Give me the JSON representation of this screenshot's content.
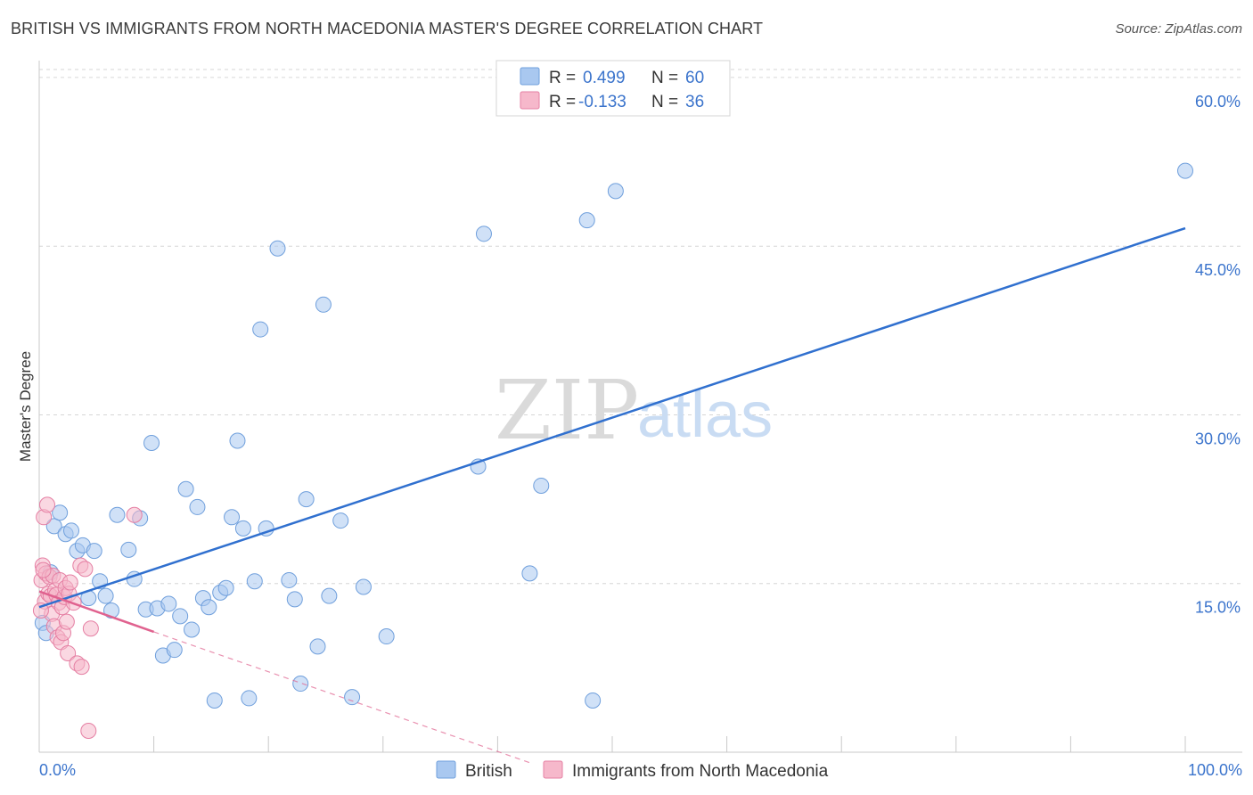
{
  "title": "BRITISH VS IMMIGRANTS FROM NORTH MACEDONIA MASTER'S DEGREE CORRELATION CHART",
  "source": "Source: ZipAtlas.com",
  "watermark": {
    "zip": "ZIP",
    "atlas": "atlas"
  },
  "chart_data": {
    "type": "scatter",
    "title": "BRITISH VS IMMIGRANTS FROM NORTH MACEDONIA MASTER'S DEGREE CORRELATION CHART",
    "xlabel": "",
    "ylabel": "Master's Degree",
    "xlim": [
      0,
      100
    ],
    "ylim": [
      0,
      61.5
    ],
    "x_tick_labels": [
      "0.0%",
      "100.0%"
    ],
    "y_ticks": [
      15,
      30,
      45,
      60
    ],
    "y_tick_labels": [
      "15.0%",
      "30.0%",
      "45.0%",
      "60.0%"
    ],
    "legend_stats": [
      {
        "r_label": "R =",
        "r_value": "0.499",
        "n_label": "N =",
        "n_value": "60"
      },
      {
        "r_label": "R =",
        "r_value": "-0.133",
        "n_label": "N =",
        "n_value": "36"
      }
    ],
    "series": [
      {
        "name": "British",
        "color": "#a9c8f0",
        "edge": "#6f9fdc",
        "trend_color": "#3070cf",
        "trend": {
          "x0": 0,
          "y0": 12.9,
          "x1": 100,
          "y1": 46.6
        },
        "points": [
          [
            0.3,
            11.5
          ],
          [
            0.6,
            10.6
          ],
          [
            1.0,
            16.0
          ],
          [
            1.3,
            20.1
          ],
          [
            1.8,
            21.3
          ],
          [
            2.3,
            19.4
          ],
          [
            2.8,
            19.7
          ],
          [
            3.3,
            17.9
          ],
          [
            3.8,
            18.4
          ],
          [
            4.3,
            13.7
          ],
          [
            4.8,
            17.9
          ],
          [
            5.3,
            15.2
          ],
          [
            5.8,
            13.9
          ],
          [
            6.3,
            12.6
          ],
          [
            6.8,
            21.1
          ],
          [
            7.8,
            18.0
          ],
          [
            8.3,
            15.4
          ],
          [
            8.8,
            20.8
          ],
          [
            9.3,
            12.7
          ],
          [
            9.8,
            27.5
          ],
          [
            10.3,
            12.8
          ],
          [
            10.8,
            8.6
          ],
          [
            11.3,
            13.2
          ],
          [
            11.8,
            9.1
          ],
          [
            12.3,
            12.1
          ],
          [
            12.8,
            23.4
          ],
          [
            13.3,
            10.9
          ],
          [
            13.8,
            21.8
          ],
          [
            14.3,
            13.7
          ],
          [
            14.8,
            12.9
          ],
          [
            15.3,
            4.6
          ],
          [
            15.8,
            14.2
          ],
          [
            16.3,
            14.6
          ],
          [
            16.8,
            20.9
          ],
          [
            17.3,
            27.7
          ],
          [
            17.8,
            19.9
          ],
          [
            18.3,
            4.8
          ],
          [
            18.8,
            15.2
          ],
          [
            19.3,
            37.6
          ],
          [
            19.8,
            19.9
          ],
          [
            20.8,
            44.8
          ],
          [
            21.8,
            15.3
          ],
          [
            22.3,
            13.6
          ],
          [
            22.8,
            6.1
          ],
          [
            23.3,
            22.5
          ],
          [
            24.3,
            9.4
          ],
          [
            24.8,
            39.8
          ],
          [
            25.3,
            13.9
          ],
          [
            26.3,
            20.6
          ],
          [
            27.3,
            4.9
          ],
          [
            28.3,
            14.7
          ],
          [
            30.3,
            10.3
          ],
          [
            38.3,
            25.4
          ],
          [
            38.8,
            46.1
          ],
          [
            42.8,
            15.9
          ],
          [
            43.8,
            23.7
          ],
          [
            47.8,
            47.3
          ],
          [
            48.3,
            4.6
          ],
          [
            50.3,
            49.9
          ],
          [
            100.0,
            51.7
          ]
        ]
      },
      {
        "name": "Immigrants from North Macedonia",
        "color": "#f6b8cb",
        "edge": "#e57fa3",
        "trend_color": "#e0628f",
        "trend": {
          "x0": 0,
          "y0": 14.3,
          "x1": 10,
          "y1": 10.7
        },
        "trend_ext": {
          "x0": 10,
          "y0": 10.7,
          "x1": 43,
          "y1": -1.0
        },
        "points": [
          [
            0.2,
            15.3
          ],
          [
            0.3,
            16.6
          ],
          [
            0.4,
            20.9
          ],
          [
            0.5,
            13.4
          ],
          [
            0.6,
            15.9
          ],
          [
            0.7,
            22.0
          ],
          [
            0.8,
            14.1
          ],
          [
            0.9,
            15.6
          ],
          [
            1.0,
            13.9
          ],
          [
            1.1,
            12.3
          ],
          [
            1.2,
            15.7
          ],
          [
            1.3,
            11.2
          ],
          [
            1.4,
            14.4
          ],
          [
            1.5,
            14.0
          ],
          [
            1.6,
            10.2
          ],
          [
            1.7,
            13.3
          ],
          [
            1.8,
            15.3
          ],
          [
            1.9,
            9.8
          ],
          [
            2.0,
            12.9
          ],
          [
            2.1,
            10.6
          ],
          [
            2.2,
            13.8
          ],
          [
            2.3,
            14.6
          ],
          [
            2.4,
            11.6
          ],
          [
            2.5,
            8.8
          ],
          [
            2.6,
            14.1
          ],
          [
            2.7,
            15.1
          ],
          [
            3.0,
            13.3
          ],
          [
            3.3,
            7.9
          ],
          [
            3.6,
            16.6
          ],
          [
            3.7,
            7.6
          ],
          [
            4.0,
            16.3
          ],
          [
            4.3,
            1.9
          ],
          [
            4.5,
            11.0
          ],
          [
            8.3,
            21.1
          ],
          [
            0.15,
            12.6
          ],
          [
            0.35,
            16.2
          ]
        ]
      }
    ]
  }
}
